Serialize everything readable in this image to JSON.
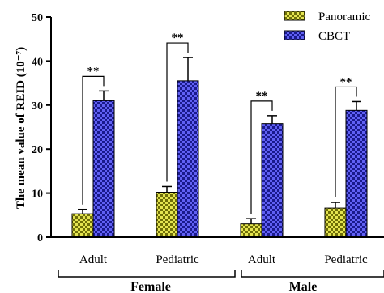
{
  "chart_data": {
    "type": "bar",
    "ylabel": "The mean value of REID (10⁻⁷)",
    "ylim": [
      0,
      50
    ],
    "yticks": [
      0,
      10,
      20,
      30,
      40,
      50
    ],
    "grid": false,
    "legend_position": "top-right",
    "categories": [
      "Adult",
      "Pediatric",
      "Adult",
      "Pediatric"
    ],
    "groups": [
      {
        "label": "Female",
        "categories": [
          "Adult",
          "Pediatric"
        ]
      },
      {
        "label": "Male",
        "categories": [
          "Adult",
          "Pediatric"
        ]
      }
    ],
    "series": [
      {
        "name": "Panoramic",
        "color": "#c8c818",
        "values": [
          5.3,
          10.2,
          3.0,
          6.6
        ],
        "errors": [
          1.0,
          1.3,
          1.2,
          1.3
        ]
      },
      {
        "name": "CBCT",
        "color": "#3b3bdc",
        "values": [
          31.0,
          35.5,
          25.8,
          28.8
        ],
        "errors": [
          2.2,
          5.3,
          1.8,
          2.0
        ]
      }
    ],
    "annotations": [
      "**",
      "**",
      "**",
      "**"
    ]
  }
}
